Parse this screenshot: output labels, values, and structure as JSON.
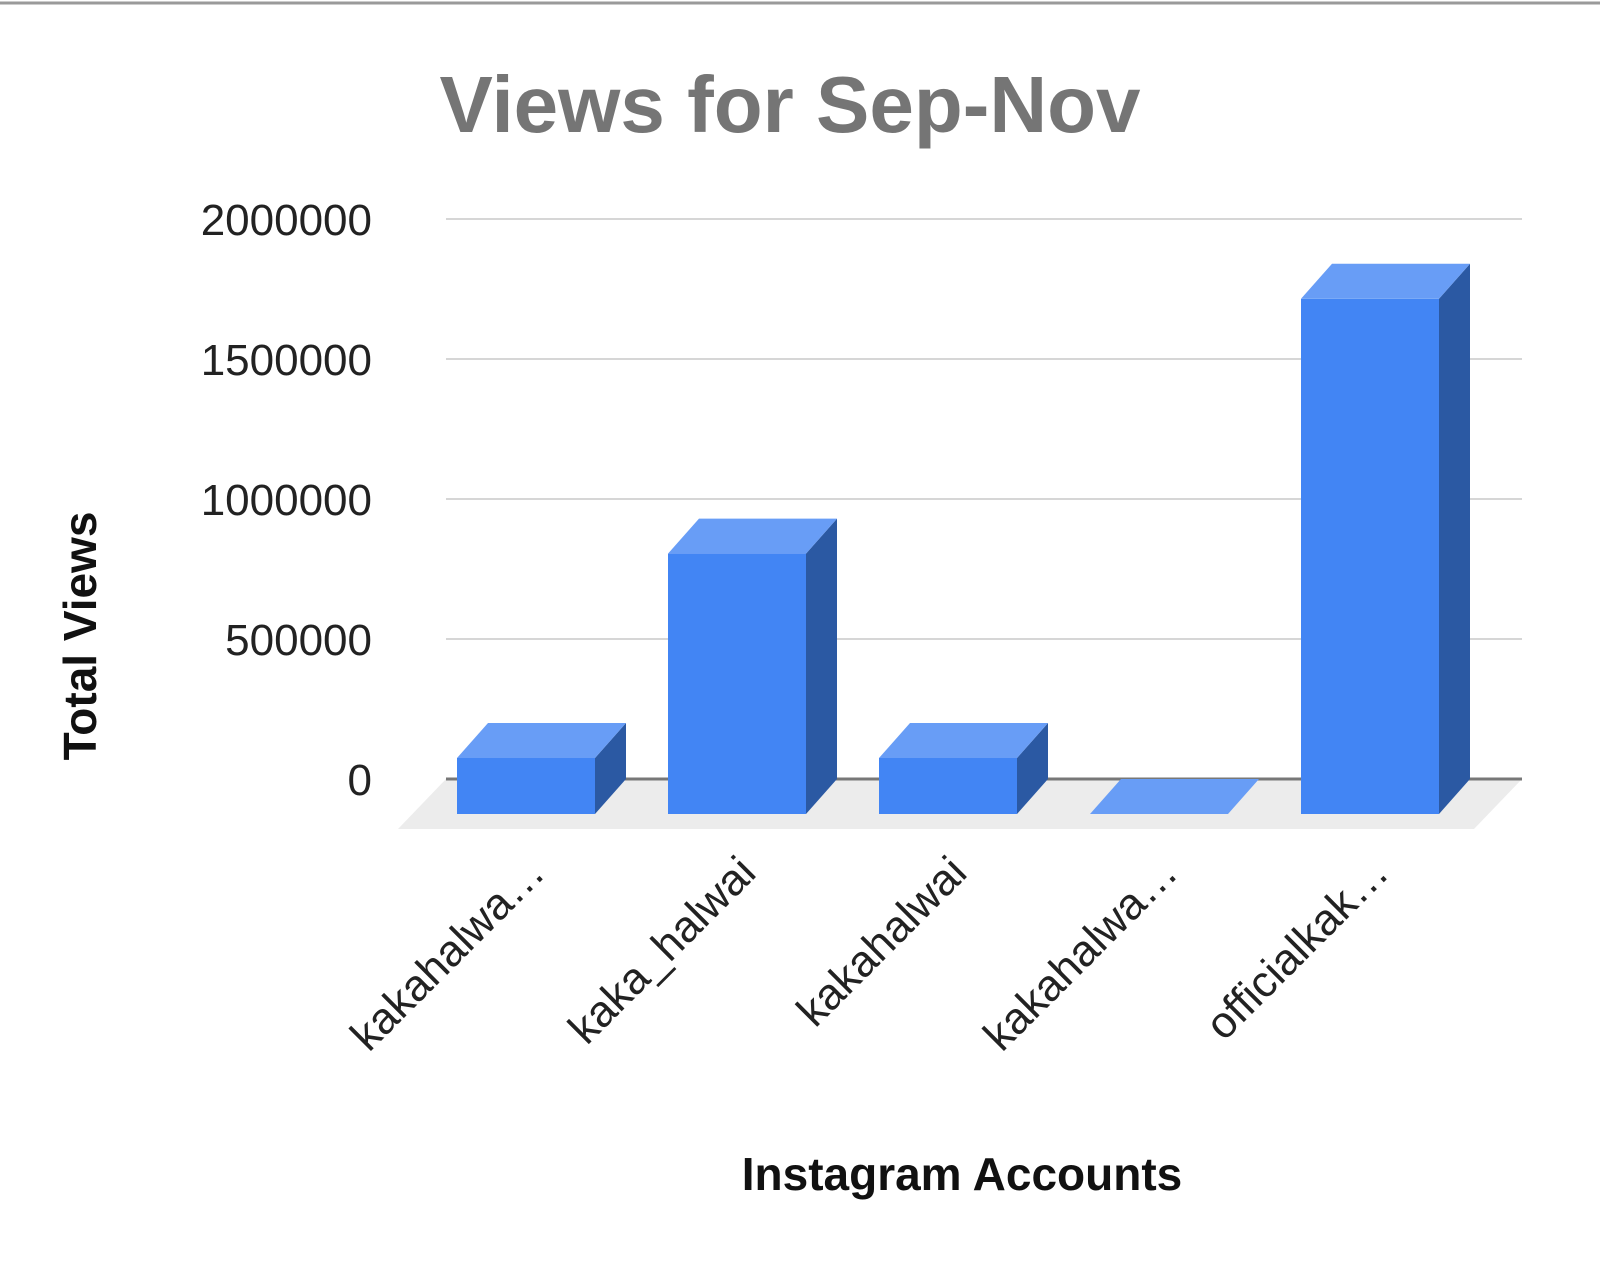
{
  "chart_data": {
    "type": "bar",
    "style": "3d-column",
    "title": "Views for Sep-Nov",
    "xlabel": "Instagram Accounts",
    "ylabel": "Total Views",
    "categories": [
      "kakahalwa…",
      "kaka_halwai",
      "kakahalwai",
      "kakahalwa…",
      "officialkak…"
    ],
    "series": [
      {
        "values": [
          200000,
          930000,
          200000,
          0,
          1840000
        ]
      }
    ],
    "ylim": [
      0,
      2000000
    ],
    "yticks": [
      "0",
      "500000",
      "1000000",
      "1500000",
      "2000000"
    ],
    "grid": true,
    "legend": "none",
    "colors": {
      "front": "#4285f4",
      "top": "#689df6",
      "side": "#2b59a3",
      "floor": "#ececec",
      "grid": "#d6d6d6",
      "baseline": "#777777",
      "frame": "#9a9a9a"
    }
  }
}
